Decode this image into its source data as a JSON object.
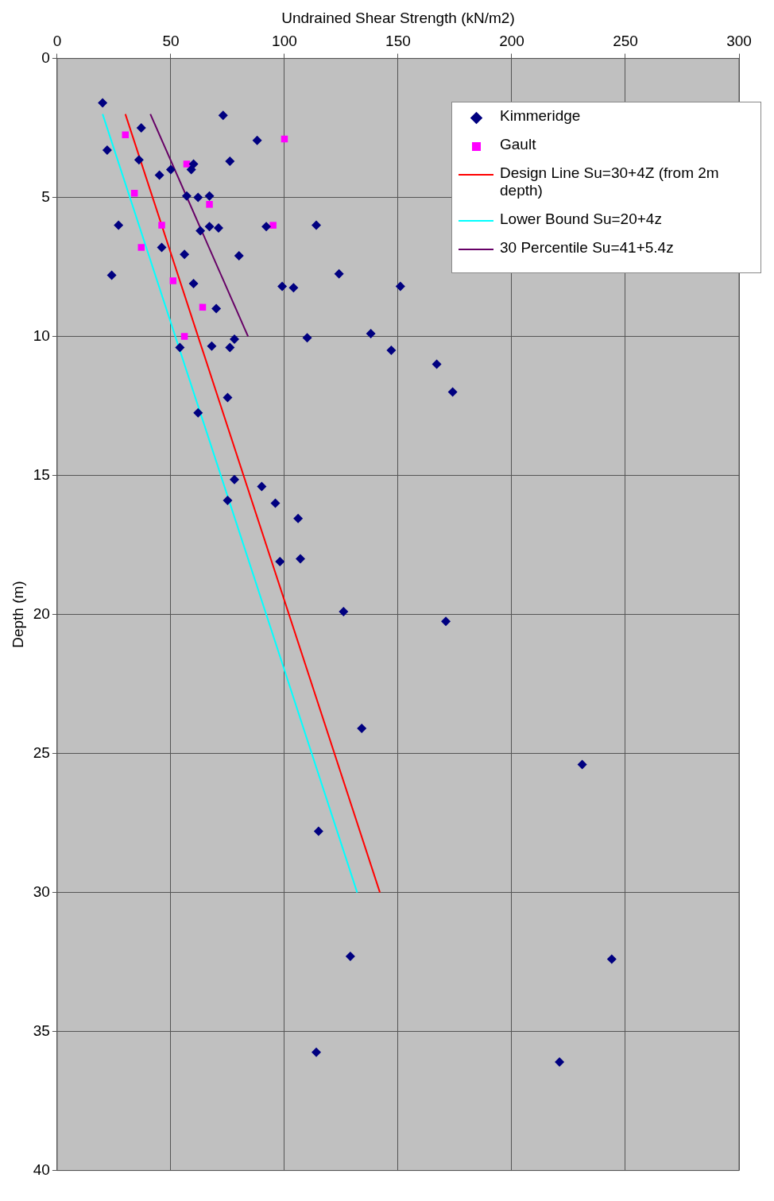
{
  "chart_data": {
    "type": "scatter",
    "xlabel": "Undrained Shear Strength (kN/m2)",
    "ylabel": "Depth (m)",
    "xlim": [
      0,
      300
    ],
    "xticks": [
      0,
      50,
      100,
      150,
      200,
      250,
      300
    ],
    "ylim": [
      40,
      0
    ],
    "yticks": [
      0,
      5,
      10,
      15,
      20,
      25,
      30,
      35,
      40
    ],
    "grid": true,
    "legend": "top right",
    "series": [
      {
        "name": "Kimmeridge",
        "marker": "diamond",
        "color": "#000080",
        "x": [
          20,
          73,
          37,
          88,
          22,
          36,
          76,
          45,
          50,
          59,
          60,
          57,
          62,
          67,
          27,
          63,
          67,
          71,
          92,
          114,
          46,
          56,
          80,
          24,
          60,
          99,
          104,
          124,
          151,
          70,
          78,
          76,
          68,
          54,
          110,
          138,
          147,
          167,
          174,
          75,
          62,
          78,
          90,
          75,
          96,
          106,
          107,
          98,
          126,
          171,
          134,
          231,
          115,
          129,
          244,
          114,
          221
        ],
        "values": [
          1.6,
          2.05,
          2.5,
          2.95,
          3.3,
          3.65,
          3.7,
          4.2,
          4.0,
          4.0,
          3.8,
          4.95,
          5.0,
          4.95,
          6.0,
          6.2,
          6.05,
          6.1,
          6.05,
          6.0,
          6.8,
          7.05,
          7.1,
          7.8,
          8.1,
          8.2,
          8.25,
          7.75,
          8.2,
          9.0,
          10.1,
          10.4,
          10.35,
          10.4,
          10.05,
          9.9,
          10.5,
          11.0,
          12.0,
          12.2,
          12.75,
          15.15,
          15.4,
          15.9,
          16.0,
          16.55,
          18.0,
          18.1,
          19.9,
          20.25,
          24.1,
          25.4,
          27.8,
          32.3,
          32.4,
          35.75,
          36.1
        ]
      },
      {
        "name": "Gault",
        "marker": "square",
        "color": "#ff00ff",
        "x": [
          30,
          100,
          57,
          34,
          67,
          46,
          95,
          37,
          51,
          64,
          56
        ],
        "values": [
          2.75,
          2.9,
          3.8,
          4.85,
          5.25,
          6.0,
          6.0,
          6.8,
          8.0,
          8.95,
          10.0
        ]
      },
      {
        "name": "Design Line Su=30+4Z (from 2m depth)",
        "type": "line",
        "marker": "none",
        "line_style": "solid",
        "color": "#ff0000",
        "x": [
          30,
          142
        ],
        "values": [
          2,
          30
        ]
      },
      {
        "name": "Lower Bound Su=20+4z",
        "type": "line",
        "marker": "none",
        "line_style": "solid",
        "color": "#00ffff",
        "x": [
          20,
          132
        ],
        "values": [
          2,
          30
        ]
      },
      {
        "name": "30 Percentile Su=41+5.4z",
        "type": "line",
        "marker": "none",
        "line_style": "solid",
        "color": "#660066",
        "x": [
          41,
          84
        ],
        "values": [
          2,
          10
        ]
      }
    ]
  }
}
